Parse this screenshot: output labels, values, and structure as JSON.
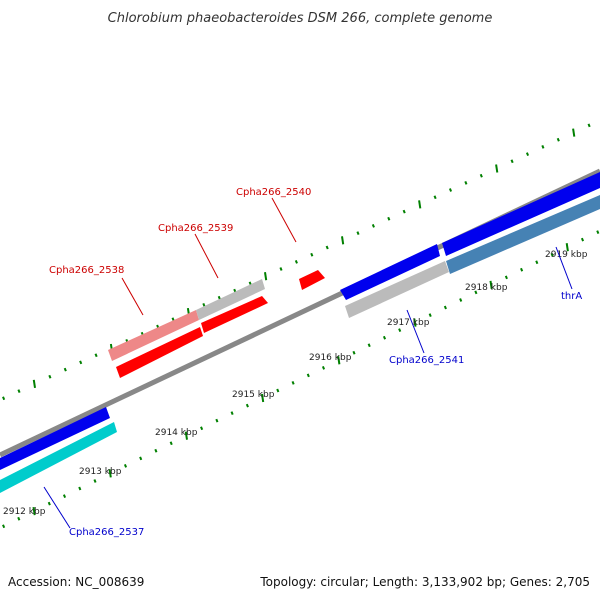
{
  "title": "Chlorobium phaeobacteroides DSM 266, complete genome",
  "accession_text": "Accession: NC_008639",
  "summary_text": "Topology: circular; Length: 3,133,902 bp; Genes: 2,705",
  "colors": {
    "backbone": "#888888",
    "forward_cds": "#0000ee",
    "reverse_cds": "#00cccc",
    "forward_selected": "#ff0000",
    "forward_selected_light": "#ee8888",
    "other_feature": "#bbbbbb",
    "rna_feature": "#4682b4",
    "tick": "#008000",
    "label_red": "#cc0000",
    "label_blue": "#0000cc"
  },
  "ticks": [
    "2912 kbp",
    "2913 kbp",
    "2914 kbp",
    "2915 kbp",
    "2916 kbp",
    "2917 kbp",
    "2918 kbp",
    "2919 kbp"
  ],
  "genes": [
    {
      "name": "Cpha266_2537",
      "color": "label_blue"
    },
    {
      "name": "Cpha266_2538",
      "color": "label_red"
    },
    {
      "name": "Cpha266_2539",
      "color": "label_red"
    },
    {
      "name": "Cpha266_2540",
      "color": "label_red"
    },
    {
      "name": "Cpha266_2541",
      "color": "label_blue"
    },
    {
      "name": "thrA",
      "color": "label_blue"
    }
  ]
}
